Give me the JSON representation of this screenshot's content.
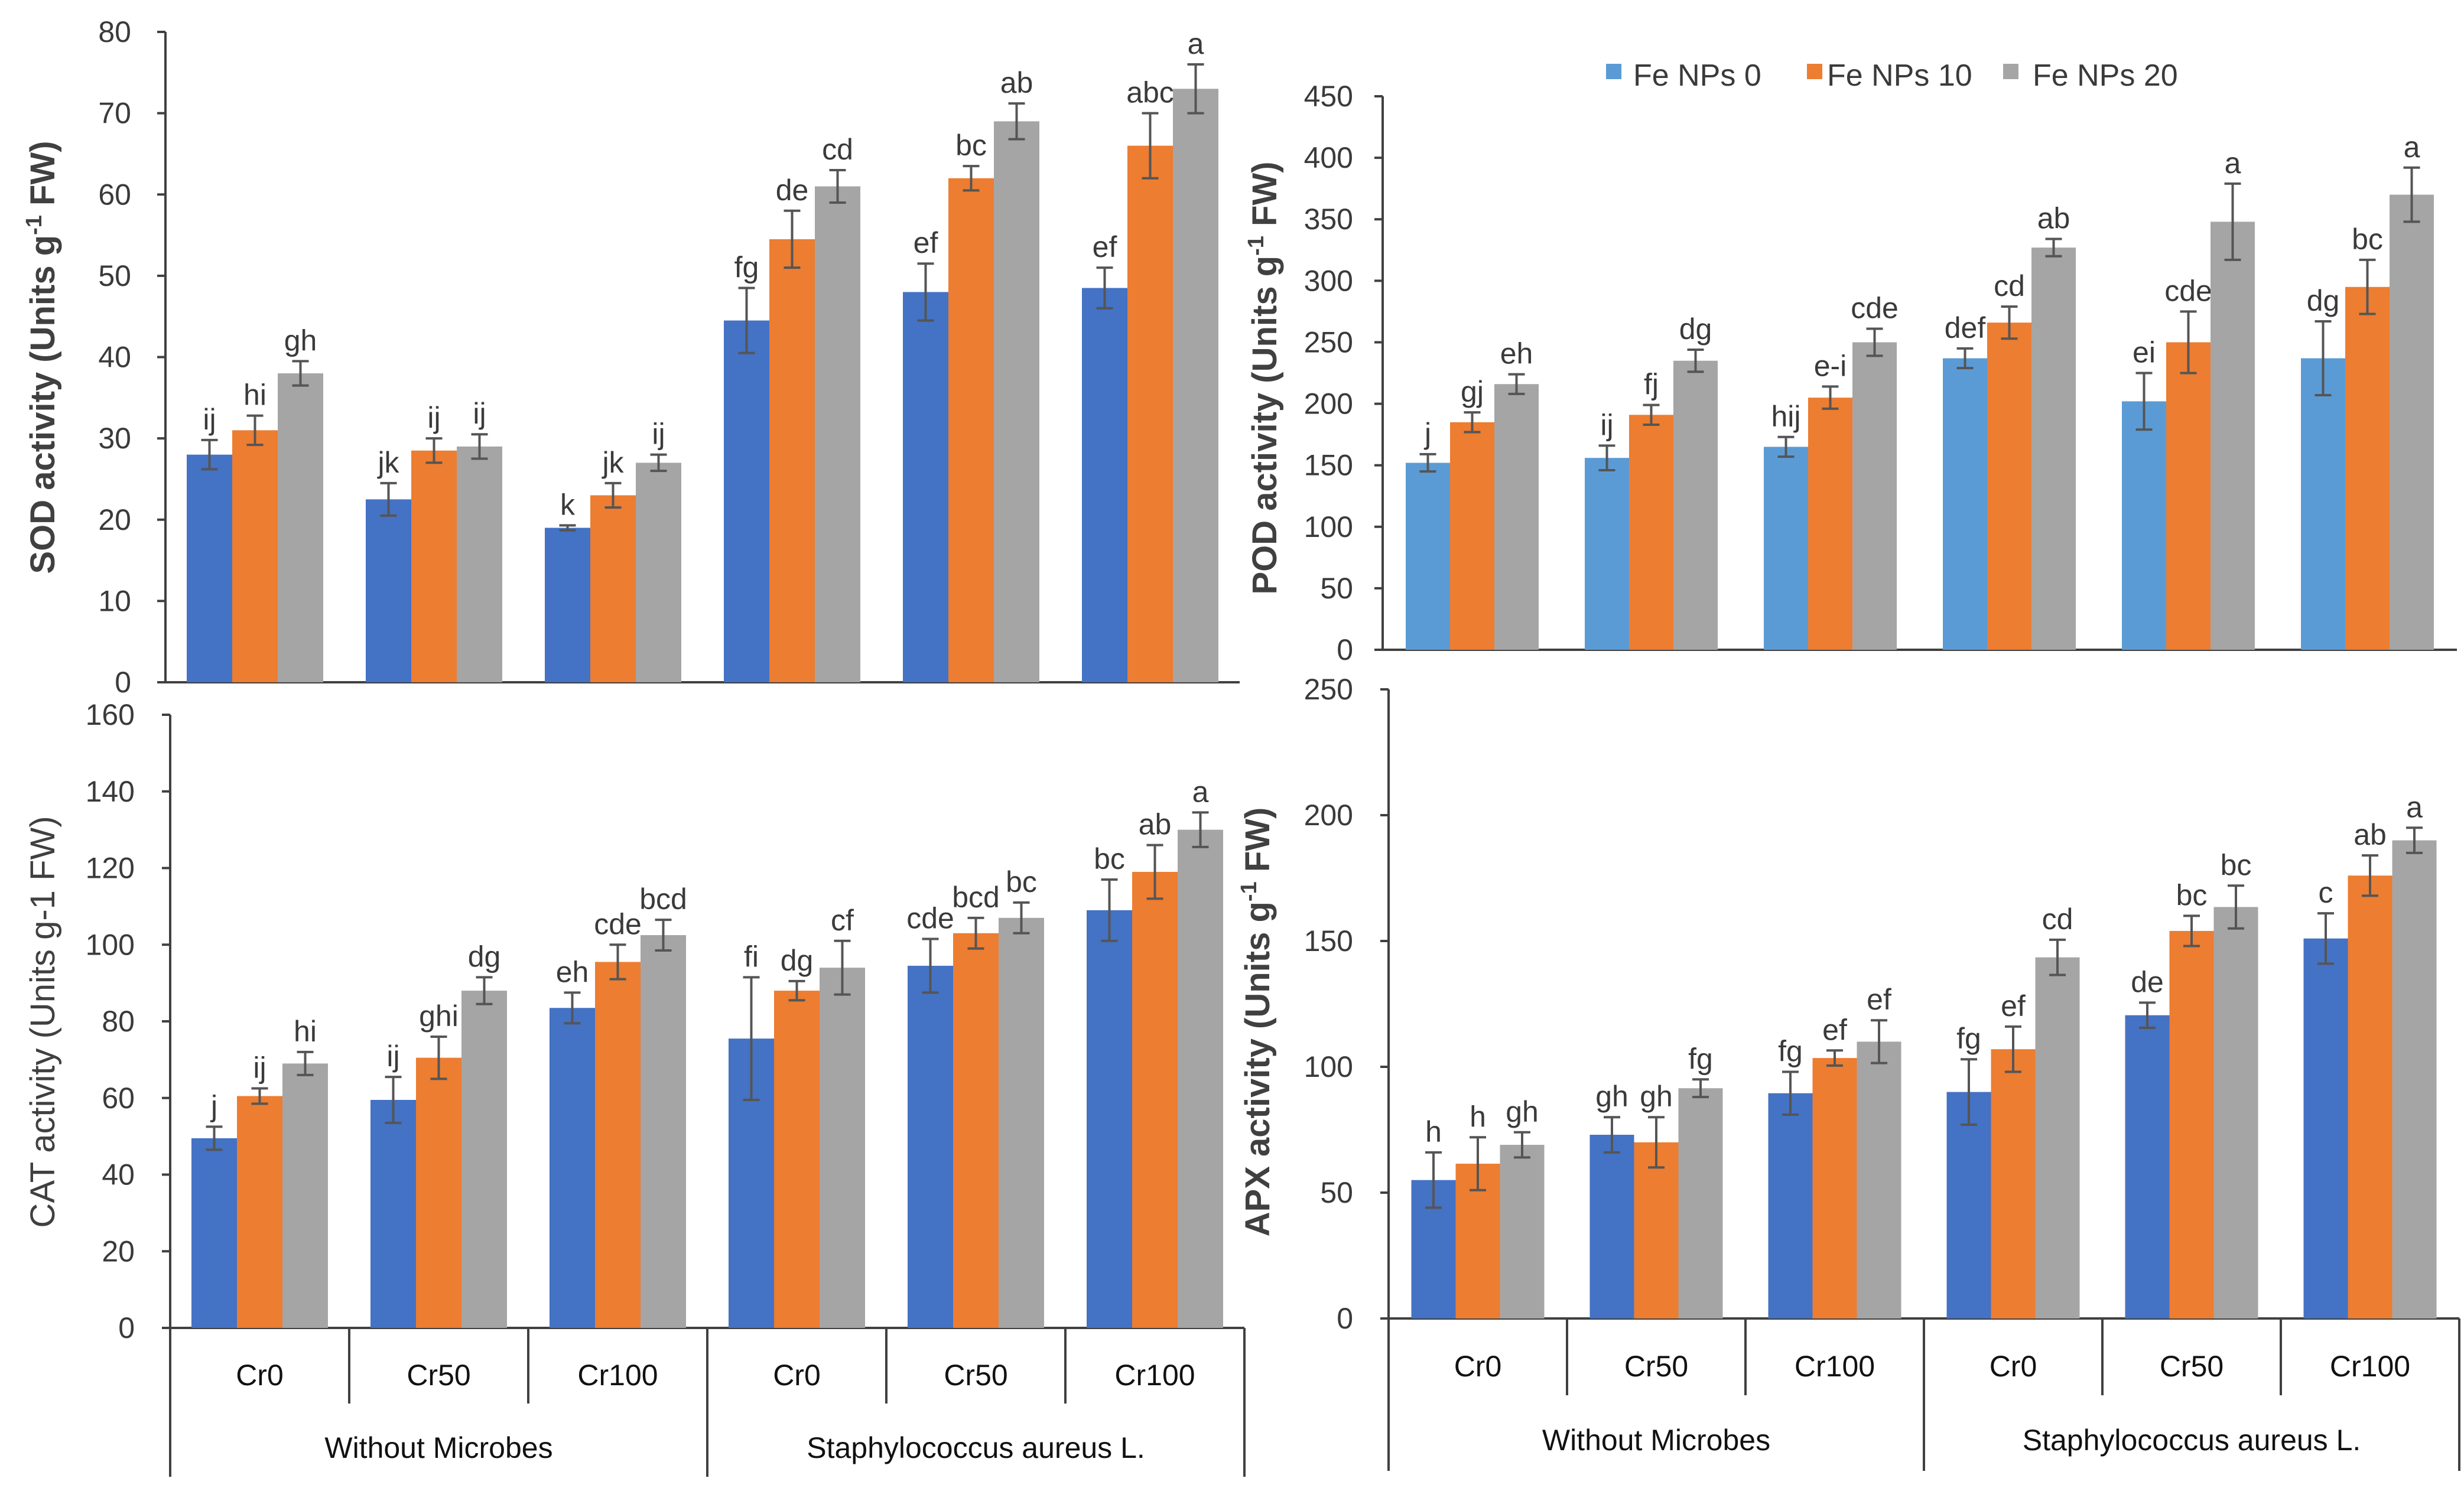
{
  "chart_data": [
    {
      "id": "sod",
      "type": "bar",
      "ylabel": "SOD activity (Units g",
      "ylabel_sup": "-1",
      "ylabel_tail": " FW)",
      "ylim": [
        0,
        80
      ],
      "yticks": [
        "0",
        "10",
        "20",
        "30",
        "40",
        "50",
        "60",
        "70",
        "80"
      ],
      "categories": [
        "Cr0",
        "Cr50",
        "Cr100",
        "Cr0",
        "Cr50",
        "Cr100"
      ],
      "groups": [
        "Without Microbes",
        "Staphylococcus aureus L."
      ],
      "series": [
        {
          "name": "Fe NPs 0",
          "values": [
            28,
            22.5,
            19,
            44.5,
            48,
            48.5
          ],
          "errors": [
            1.8,
            2,
            0.3,
            4,
            3.5,
            2.5
          ],
          "letters": [
            "ij",
            "jk",
            "k",
            "fg",
            "ef",
            "ef"
          ]
        },
        {
          "name": "Fe NPs 10",
          "values": [
            31,
            28.5,
            23,
            54.5,
            62,
            66
          ],
          "errors": [
            1.8,
            1.5,
            1.5,
            3.5,
            1.5,
            4
          ],
          "letters": [
            "hi",
            "ij",
            "jk",
            "de",
            "bc",
            "abc"
          ]
        },
        {
          "name": "Fe NPs 20",
          "values": [
            38,
            29,
            27,
            61,
            69,
            73
          ],
          "errors": [
            1.5,
            1.5,
            1,
            2,
            2.2,
            3
          ],
          "letters": [
            "gh",
            "ij",
            "ij",
            "cd",
            "ab",
            "a"
          ]
        }
      ]
    },
    {
      "id": "pod",
      "type": "bar",
      "ylabel": "POD activity (Units g",
      "ylabel_sup": "-1",
      "ylabel_tail": " FW)",
      "ylim": [
        0,
        450
      ],
      "yticks": [
        "0",
        "50",
        "100",
        "150",
        "200",
        "250",
        "300",
        "350",
        "400",
        "450"
      ],
      "categories": [
        "Cr0",
        "Cr50",
        "Cr100",
        "Cr0",
        "Cr50",
        "Cr100"
      ],
      "groups": [
        "Without Microbes",
        "Staphylococcus aureus L."
      ],
      "legend": [
        "Fe NPs 0",
        "Fe NPs 10",
        "Fe NPs 20"
      ],
      "series": [
        {
          "name": "Fe NPs 0",
          "values": [
            152,
            156,
            165,
            237,
            202,
            237
          ],
          "errors": [
            7,
            10,
            8,
            8,
            23,
            30
          ],
          "letters": [
            "j",
            "ij",
            "hij",
            "def",
            "ei",
            "dg"
          ]
        },
        {
          "name": "Fe NPs 10",
          "values": [
            185,
            191,
            205,
            266,
            250,
            295
          ],
          "errors": [
            8,
            8,
            9,
            13,
            25,
            22
          ],
          "letters": [
            "gj",
            "fj",
            "e-i",
            "cd",
            "cde",
            "bc"
          ]
        },
        {
          "name": "Fe NPs 20",
          "values": [
            216,
            235,
            250,
            327,
            348,
            370
          ],
          "errors": [
            8,
            9,
            11,
            7,
            31,
            22
          ],
          "letters": [
            "eh",
            "dg",
            "cde",
            "ab",
            "a",
            "a"
          ]
        }
      ]
    },
    {
      "id": "cat",
      "type": "bar",
      "ylabel": "CAT activity (Units g-1 FW)",
      "ylim": [
        0,
        160
      ],
      "yticks": [
        "0",
        "20",
        "40",
        "60",
        "80",
        "100",
        "120",
        "140",
        "160"
      ],
      "categories": [
        "Cr0",
        "Cr50",
        "Cr100",
        "Cr0",
        "Cr50",
        "Cr100"
      ],
      "groups": [
        "Without Microbes",
        "Staphylococcus aureus L."
      ],
      "series": [
        {
          "name": "Fe NPs 0",
          "values": [
            49.5,
            59.5,
            83.5,
            75.5,
            94.5,
            109
          ],
          "errors": [
            3,
            6,
            4,
            16,
            7,
            8
          ],
          "letters": [
            "j",
            "ij",
            "eh",
            "fi",
            "cde",
            "bc"
          ]
        },
        {
          "name": "Fe NPs 10",
          "values": [
            60.5,
            70.5,
            95.5,
            88,
            103,
            119
          ],
          "errors": [
            2,
            5.5,
            4.5,
            2.5,
            4,
            7
          ],
          "letters": [
            "ij",
            "ghi",
            "cde",
            "dg",
            "bcd",
            "ab"
          ]
        },
        {
          "name": "Fe NPs 20",
          "values": [
            69,
            88,
            102.5,
            94,
            107,
            130
          ],
          "errors": [
            3,
            3.5,
            4,
            7,
            4,
            4.5
          ],
          "letters": [
            "hi",
            "dg",
            "bcd",
            "cf",
            "bc",
            "a"
          ]
        }
      ]
    },
    {
      "id": "apx",
      "type": "bar",
      "ylabel": "APX activity (Units g",
      "ylabel_sup": "-1",
      "ylabel_tail": " FW)",
      "ylim": [
        0,
        250
      ],
      "yticks": [
        "0",
        "50",
        "100",
        "150",
        "200",
        "250"
      ],
      "categories": [
        "Cr0",
        "Cr50",
        "Cr100",
        "Cr0",
        "Cr50",
        "Cr100"
      ],
      "groups": [
        "Without Microbes",
        "Staphylococcus aureus L."
      ],
      "series": [
        {
          "name": "Fe NPs 0",
          "values": [
            55,
            73,
            89.5,
            90,
            120.5,
            151
          ],
          "errors": [
            11,
            7,
            8.5,
            13,
            5,
            10
          ],
          "letters": [
            "h",
            "gh",
            "fg",
            "fg",
            "de",
            "c"
          ]
        },
        {
          "name": "Fe NPs 10",
          "values": [
            61.5,
            70,
            103.5,
            107,
            154,
            176
          ],
          "errors": [
            10.5,
            10,
            3,
            9,
            6,
            8
          ],
          "letters": [
            "h",
            "gh",
            "ef",
            "ef",
            "bc",
            "ab"
          ]
        },
        {
          "name": "Fe NPs 20",
          "values": [
            69,
            91.5,
            110,
            143.5,
            163.5,
            190
          ],
          "errors": [
            5,
            3.5,
            8.5,
            7,
            8.5,
            5
          ],
          "letters": [
            "gh",
            "fg",
            "ef",
            "cd",
            "bc",
            "a"
          ]
        }
      ]
    }
  ],
  "colors": {
    "sod": [
      "#4472C4",
      "#ED7D31",
      "#A5A5A5"
    ],
    "pod": [
      "#5B9BD5",
      "#ED7D31",
      "#A5A5A5"
    ],
    "cat": [
      "#4472C4",
      "#ED7D31",
      "#A5A5A5"
    ],
    "apx": [
      "#4472C4",
      "#ED7D31",
      "#A5A5A5"
    ]
  }
}
